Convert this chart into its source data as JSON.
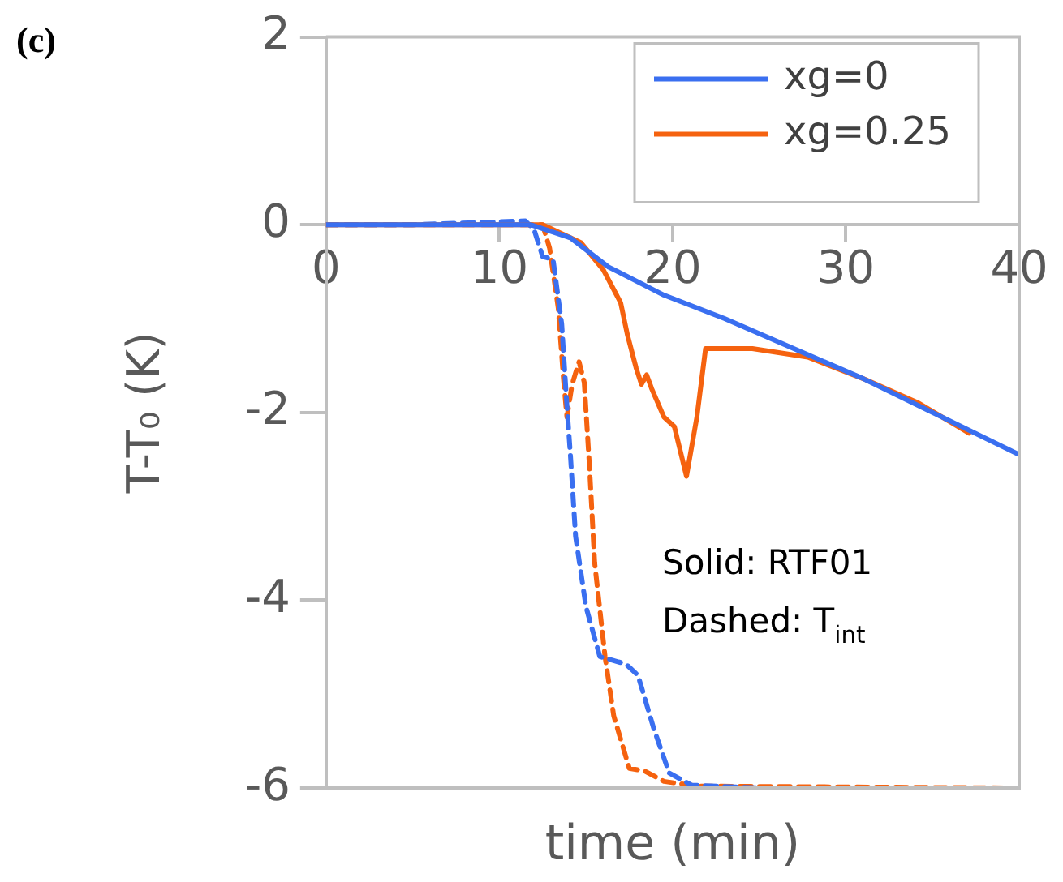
{
  "chart_data": {
    "type": "line",
    "title": "(c)",
    "xlabel": "time (min)",
    "ylabel": "T-T₀ (K)",
    "xlim": [
      0,
      40
    ],
    "xticks": [
      0,
      10,
      20,
      30,
      40
    ],
    "ylim": [
      -6,
      2
    ],
    "yticks": [
      -6,
      -4,
      -2,
      0,
      2
    ],
    "grid": false,
    "legend": "top right",
    "marker": "none",
    "annotations": [
      "Solid: RTF01",
      "Dashed: T$_{int}$"
    ],
    "series": [
      {
        "name": "xg=0",
        "color": "#3a6ff0",
        "line_style": "solid",
        "x": [
          0,
          5,
          11.8,
          14.1,
          16.3,
          19.5,
          23,
          31,
          40
        ],
        "values": [
          0,
          0,
          0,
          -0.14,
          -0.45,
          -0.75,
          -1.0,
          -1.64,
          -2.45
        ]
      },
      {
        "name": "xg=0.25",
        "color": "#f5620f",
        "line_style": "solid",
        "x": [
          0,
          5,
          12,
          12.5,
          14.7,
          16,
          17,
          17.4,
          17.9,
          18.2,
          18.5,
          18.8,
          19.5,
          20.1,
          20.8,
          21.4,
          21.9,
          24.6,
          27.8,
          31,
          34.2,
          37.1
        ],
        "values": [
          0,
          0,
          0,
          0,
          -0.19,
          -0.48,
          -0.83,
          -1.18,
          -1.53,
          -1.7,
          -1.6,
          -1.75,
          -2.05,
          -2.15,
          -2.68,
          -2.05,
          -1.32,
          -1.32,
          -1.41,
          -1.64,
          -1.9,
          -2.22
        ]
      },
      {
        "color": "#3a6ff0",
        "line_style": "dashed",
        "x": [
          0,
          5,
          11.5,
          12,
          12.5,
          13.1,
          13.6,
          13.9,
          14.1,
          14.4,
          15,
          15.8,
          17.3,
          18,
          18.9,
          19.8,
          21.1,
          25,
          40
        ],
        "values": [
          0,
          0,
          0.04,
          -0.05,
          -0.34,
          -0.37,
          -1.06,
          -1.93,
          -2.45,
          -3.32,
          -4.07,
          -4.6,
          -4.68,
          -4.8,
          -5.36,
          -5.84,
          -5.97,
          -6,
          -6
        ]
      },
      {
        "color": "#f5620f",
        "line_style": "dashed",
        "x": [
          0,
          5,
          12.5,
          12.9,
          13.4,
          13.7,
          13.9,
          14.2,
          14.6,
          14.9,
          15.2,
          15.5,
          16.1,
          16.6,
          17.5,
          18.4,
          19.5,
          21.4,
          40
        ],
        "values": [
          0,
          0,
          0,
          -0.25,
          -0.89,
          -1.64,
          -2.05,
          -1.7,
          -1.46,
          -1.68,
          -2.57,
          -3.6,
          -4.6,
          -5.23,
          -5.79,
          -5.82,
          -5.93,
          -5.98,
          -6
        ]
      }
    ]
  }
}
